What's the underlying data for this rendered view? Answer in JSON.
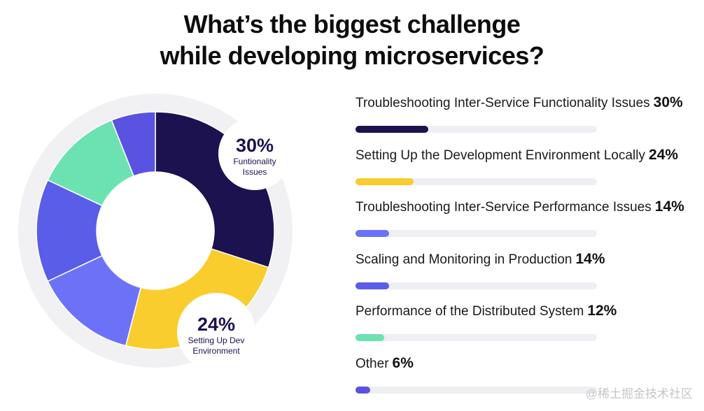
{
  "title": {
    "line1": "What’s the biggest challenge",
    "line2": "while developing microservices?"
  },
  "callouts": [
    {
      "pct": "30%",
      "line1": "Funtionality",
      "line2": "Issues"
    },
    {
      "pct": "24%",
      "line1": "Setting Up Dev",
      "line2": "Environment"
    }
  ],
  "chart_data": {
    "type": "pie",
    "title": "What’s the biggest challenge while developing microservices?",
    "categories": [
      "Troubleshooting Inter-Service Functionality Issues",
      "Setting Up the Development Environment Locally",
      "Troubleshooting Inter-Service Performance Issues",
      "Scaling and Monitoring in Production",
      "Performance of the Distributed System",
      "Other"
    ],
    "values": [
      30,
      24,
      14,
      14,
      12,
      6
    ],
    "labels": [
      "30%",
      "24%",
      "14%",
      "14%",
      "12%",
      "6%"
    ],
    "colors": [
      "#1c1250",
      "#f9cd2d",
      "#6c72f8",
      "#5a5de7",
      "#6ce2b1",
      "#5a52e0"
    ],
    "max": 100
  },
  "watermark": "@稀土掘金技术社区"
}
